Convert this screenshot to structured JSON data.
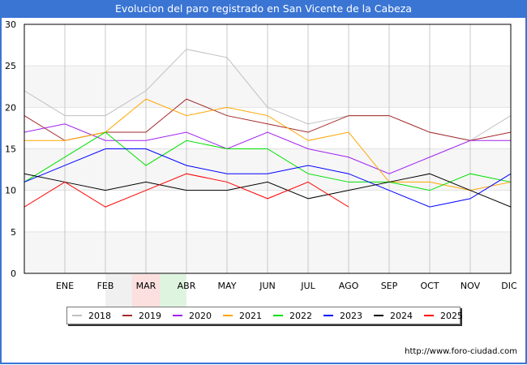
{
  "title": "Evolucion del paro registrado en San Vicente de la Cabeza",
  "footer": "http://www.foro-ciudad.com",
  "colors": {
    "title_bg": "#3a75d4",
    "band": "#f6f6f6",
    "grid": "#c8c8c8"
  },
  "chart_data": {
    "type": "line",
    "title": "Evolucion del paro registrado en San Vicente de la Cabeza",
    "xlabel": "",
    "ylabel": "",
    "ylim": [
      0,
      30
    ],
    "yticks": [
      "0",
      "5",
      "10",
      "15",
      "20",
      "25",
      "30"
    ],
    "categories": [
      "",
      "ENE",
      "FEB",
      "MAR",
      "ABR",
      "MAY",
      "JUN",
      "JUL",
      "AGO",
      "SEP",
      "OCT",
      "NOV",
      "DIC"
    ],
    "grid": true,
    "legend_position": "bottom",
    "series": [
      {
        "name": "2018",
        "color": "#c0c0c0",
        "values": [
          22,
          19,
          19,
          22,
          27,
          26,
          20,
          18,
          19,
          19,
          17,
          16,
          19
        ]
      },
      {
        "name": "2019",
        "color": "#a52a2a",
        "values": [
          19,
          16,
          17,
          17,
          21,
          19,
          18,
          17,
          19,
          19,
          17,
          16,
          17
        ]
      },
      {
        "name": "2020",
        "color": "#a020f0",
        "values": [
          17,
          18,
          16,
          16,
          17,
          15,
          17,
          15,
          14,
          12,
          14,
          16,
          16
        ]
      },
      {
        "name": "2021",
        "color": "#ffa500",
        "values": [
          16,
          16,
          17,
          21,
          19,
          20,
          19,
          16,
          17,
          11,
          11,
          10,
          11
        ]
      },
      {
        "name": "2022",
        "color": "#00e000",
        "values": [
          11,
          14,
          17,
          13,
          16,
          15,
          15,
          12,
          11,
          11,
          10,
          12,
          11
        ]
      },
      {
        "name": "2023",
        "color": "#0000ff",
        "values": [
          11,
          13,
          15,
          15,
          13,
          12,
          12,
          13,
          12,
          10,
          8,
          9,
          12
        ]
      },
      {
        "name": "2024",
        "color": "#000000",
        "values": [
          12,
          11,
          10,
          11,
          10,
          10,
          11,
          9,
          10,
          11,
          12,
          10,
          8
        ]
      },
      {
        "name": "2025",
        "color": "#ff0000",
        "values": [
          8,
          11,
          8,
          10,
          12,
          11,
          9,
          11,
          8,
          null,
          null,
          null,
          null
        ]
      }
    ]
  }
}
